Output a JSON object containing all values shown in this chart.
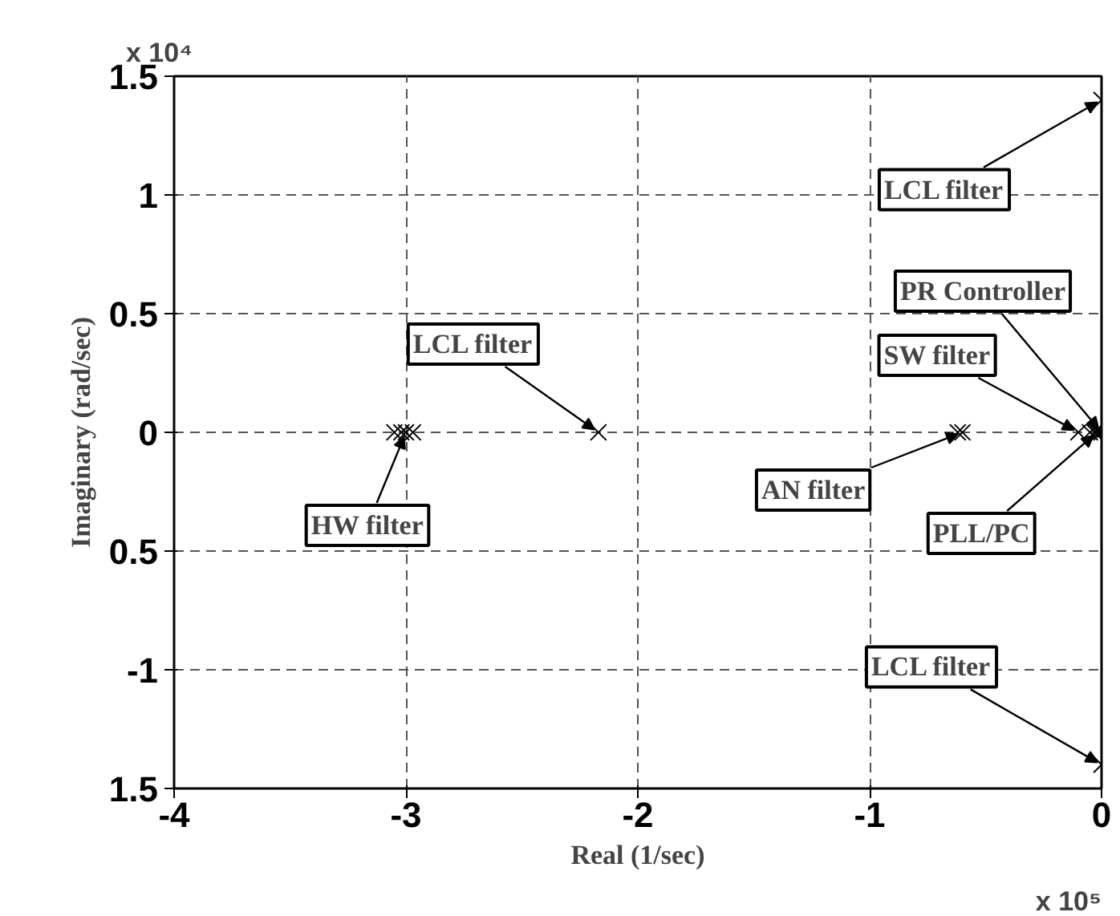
{
  "chart_data": {
    "type": "scatter",
    "xlabel": "Real (1/sec)",
    "ylabel": "Imaginary (rad/sec)",
    "series": [
      {
        "color": "#000000",
        "x": [
          0,
          0,
          -3.05,
          -3.02,
          -3.0,
          -2.97,
          -2.17,
          -0.62,
          -0.6,
          -0.1,
          -0.05,
          -0.03,
          -0.02,
          -0.01,
          0
        ],
        "values": [
          1.4,
          -1.4,
          0,
          0,
          0,
          0,
          0,
          0,
          0,
          0,
          0,
          0,
          0,
          0,
          0
        ]
      }
    ],
    "marker": "cross",
    "grid": true,
    "xlim": [
      -4,
      0
    ],
    "ylim": [
      -1.5,
      1.5
    ],
    "xticks": [
      -4,
      -3,
      -2,
      -1,
      0
    ],
    "yticks": [
      {
        "value": -1.5,
        "label": "1.5"
      },
      -1,
      {
        "value": -0.5,
        "label": "0.5"
      },
      0,
      0.5,
      1,
      1.5
    ],
    "annotations": [
      {
        "text": "LCL filter",
        "x": 0,
        "y": 1.4
      },
      {
        "text": "PR Controller",
        "x": 0,
        "y": 0
      },
      {
        "text": "SW filter",
        "x": -0.1,
        "y": 0
      },
      {
        "text": "AN filter",
        "x": -0.6,
        "y": 0
      },
      {
        "text": "PLL/PC",
        "x": -0.02,
        "y": 0
      },
      {
        "text": "LCL filter",
        "x": 0,
        "y": -1.4
      },
      {
        "text": "LCL filter",
        "x": -2.17,
        "y": 0
      },
      {
        "text": "HW filter",
        "x": -3.0,
        "y": 0
      },
      "x 10⁴",
      "x 10⁵"
    ]
  }
}
